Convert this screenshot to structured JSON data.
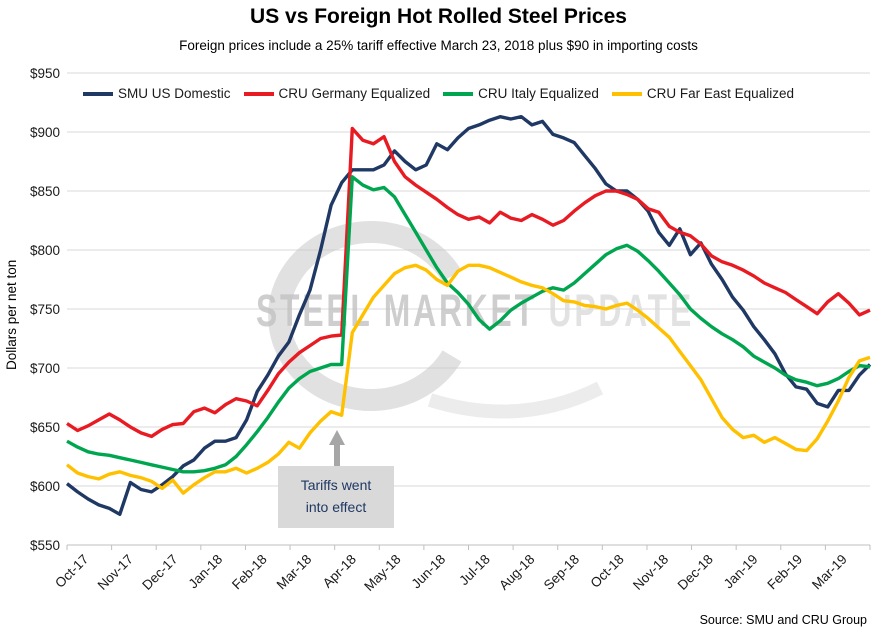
{
  "title": "US vs Foreign Hot Rolled Steel Prices",
  "subtitle": "Foreign prices include a 25% tariff effective March 23, 2018 plus $90 in importing costs",
  "y_axis_title": "Dollars per net ton",
  "source": "Source: SMU and CRU Group",
  "watermark": {
    "text": "STEEL MARKET UPDATE",
    "logo": "circle-swoosh-icon"
  },
  "annotation": {
    "line1": "Tariffs went",
    "line2": "into effect",
    "arrow": "up-arrow-icon"
  },
  "colors": {
    "navy": "#1f3864",
    "red": "#e81b23",
    "green": "#00a550",
    "yellow": "#ffc000",
    "grid": "#d9d9d9",
    "axis": "#bfbfbf",
    "annotation_bg": "#d9d9d9",
    "annotation_text": "#1f3864",
    "arrow": "#a6a6a6",
    "watermark_dark": "#c3c3c3",
    "watermark_light": "#dcdcdc"
  },
  "chart_data": {
    "type": "line",
    "title": "US vs Foreign Hot Rolled Steel Prices",
    "subtitle": "Foreign prices include a 25% tariff effective March 23, 2018 plus $90 in importing costs",
    "ylabel": "Dollars per net ton",
    "ylim": [
      550,
      950
    ],
    "ytick_step": 50,
    "y_tick_labels": [
      "$950",
      "$900",
      "$850",
      "$800",
      "$750",
      "$700",
      "$650",
      "$600",
      "$550"
    ],
    "grid": "horizontal",
    "legend_position": "top",
    "x_unit": "weekly",
    "categories": [
      "Oct-17",
      "Nov-17",
      "Dec-17",
      "Jan-18",
      "Feb-18",
      "Mar-18",
      "Apr-18",
      "May-18",
      "Jun-18",
      "Jul-18",
      "Aug-18",
      "Sep-18",
      "Oct-18",
      "Nov-18",
      "Dec-18",
      "Jan-19",
      "Feb-19",
      "Mar-19"
    ],
    "points_per_month": [
      5,
      4,
      4,
      5,
      4,
      4,
      5,
      4,
      4,
      5,
      4,
      4,
      5,
      4,
      4,
      5,
      4,
      3
    ],
    "annotation_text": "Tariffs went into effect",
    "series": [
      {
        "name": "SMU US Domestic",
        "color": "#1f3864",
        "values": [
          602,
          595,
          589,
          584,
          581,
          576,
          603,
          597,
          595,
          601,
          608,
          617,
          622,
          632,
          638,
          638,
          641,
          656,
          680,
          694,
          710,
          722,
          745,
          766,
          800,
          838,
          857,
          868,
          868,
          868,
          872,
          884,
          875,
          868,
          872,
          890,
          885,
          895,
          903,
          906,
          910,
          913,
          911,
          913,
          906,
          909,
          898,
          895,
          891,
          880,
          869,
          856,
          850,
          850,
          843,
          833,
          815,
          804,
          818,
          796,
          806,
          788,
          775,
          760,
          749,
          735,
          724,
          712,
          695,
          684,
          682,
          670,
          667,
          681,
          681,
          694,
          703
        ]
      },
      {
        "name": "CRU Germany Equalized",
        "color": "#e81b23",
        "values": [
          653,
          647,
          651,
          656,
          661,
          656,
          650,
          645,
          642,
          648,
          652,
          653,
          663,
          666,
          662,
          669,
          674,
          672,
          668,
          681,
          695,
          705,
          713,
          719,
          725,
          727,
          728,
          903,
          893,
          890,
          896,
          875,
          862,
          855,
          849,
          843,
          836,
          830,
          826,
          828,
          823,
          832,
          827,
          825,
          830,
          826,
          821,
          825,
          833,
          840,
          846,
          850,
          850,
          847,
          843,
          835,
          832,
          820,
          815,
          812,
          805,
          795,
          790,
          787,
          783,
          778,
          772,
          768,
          764,
          758,
          752,
          746,
          756,
          763,
          755,
          745,
          749
        ]
      },
      {
        "name": "CRU Italy Equalized",
        "color": "#00a550",
        "values": [
          638,
          633,
          629,
          627,
          626,
          624,
          622,
          620,
          618,
          616,
          614,
          612,
          612,
          613,
          615,
          618,
          625,
          635,
          646,
          658,
          671,
          683,
          691,
          697,
          700,
          703,
          703,
          862,
          855,
          851,
          853,
          845,
          830,
          815,
          800,
          785,
          772,
          764,
          754,
          741,
          733,
          740,
          749,
          755,
          760,
          765,
          768,
          766,
          772,
          780,
          788,
          796,
          801,
          804,
          799,
          791,
          782,
          772,
          762,
          750,
          742,
          735,
          729,
          724,
          718,
          710,
          705,
          700,
          694,
          690,
          688,
          685,
          687,
          691,
          697,
          702,
          701
        ]
      },
      {
        "name": "CRU Far East Equalized",
        "color": "#ffc000",
        "values": [
          618,
          611,
          608,
          606,
          610,
          612,
          609,
          607,
          604,
          598,
          605,
          594,
          601,
          607,
          612,
          612,
          615,
          611,
          615,
          620,
          627,
          637,
          632,
          645,
          655,
          663,
          660,
          730,
          745,
          760,
          770,
          780,
          785,
          787,
          783,
          775,
          770,
          782,
          787,
          787,
          785,
          781,
          777,
          773,
          770,
          768,
          763,
          757,
          756,
          753,
          752,
          750,
          753,
          755,
          749,
          742,
          734,
          726,
          714,
          702,
          690,
          674,
          658,
          648,
          641,
          643,
          637,
          641,
          636,
          631,
          630,
          640,
          655,
          672,
          692,
          706,
          709
        ]
      }
    ]
  }
}
